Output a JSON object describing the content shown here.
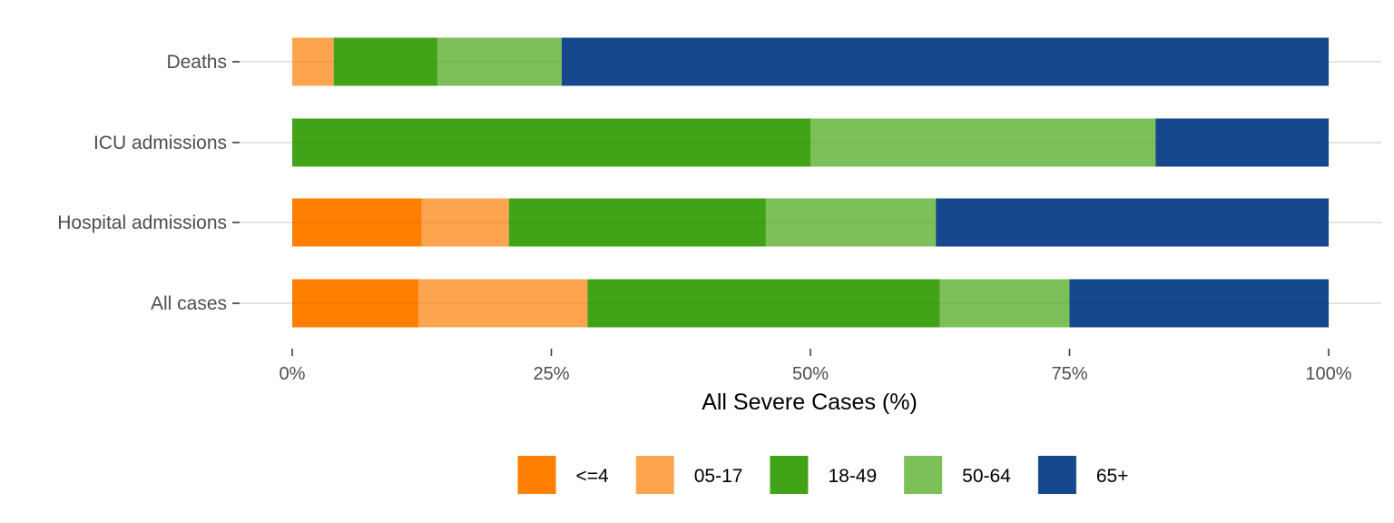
{
  "chart_data": {
    "type": "bar",
    "orientation": "horizontal",
    "stacked": true,
    "categories": [
      "Deaths",
      "ICU admissions",
      "Hospital admissions",
      "All cases"
    ],
    "series": [
      {
        "name": "<=4",
        "color": "#FF7F00",
        "values": [
          0,
          0,
          12.5,
          12.2
        ]
      },
      {
        "name": "05-17",
        "color": "#FDA44E",
        "values": [
          4,
          0,
          8.4,
          16.3
        ]
      },
      {
        "name": "18-49",
        "color": "#41A317",
        "values": [
          10,
          50,
          24.8,
          34.0
        ]
      },
      {
        "name": "50-64",
        "color": "#7DC05A",
        "values": [
          12,
          33.3,
          16.4,
          12.5
        ]
      },
      {
        "name": "65+",
        "color": "#15488C",
        "values": [
          74,
          16.7,
          37.9,
          25.0
        ]
      }
    ],
    "xlabel": "All Severe Cases (%)",
    "xlim": [
      0,
      100
    ],
    "xticks": [
      "0%",
      "25%",
      "50%",
      "75%",
      "100%"
    ],
    "grid": "horizontal-major",
    "legend_position": "bottom"
  }
}
